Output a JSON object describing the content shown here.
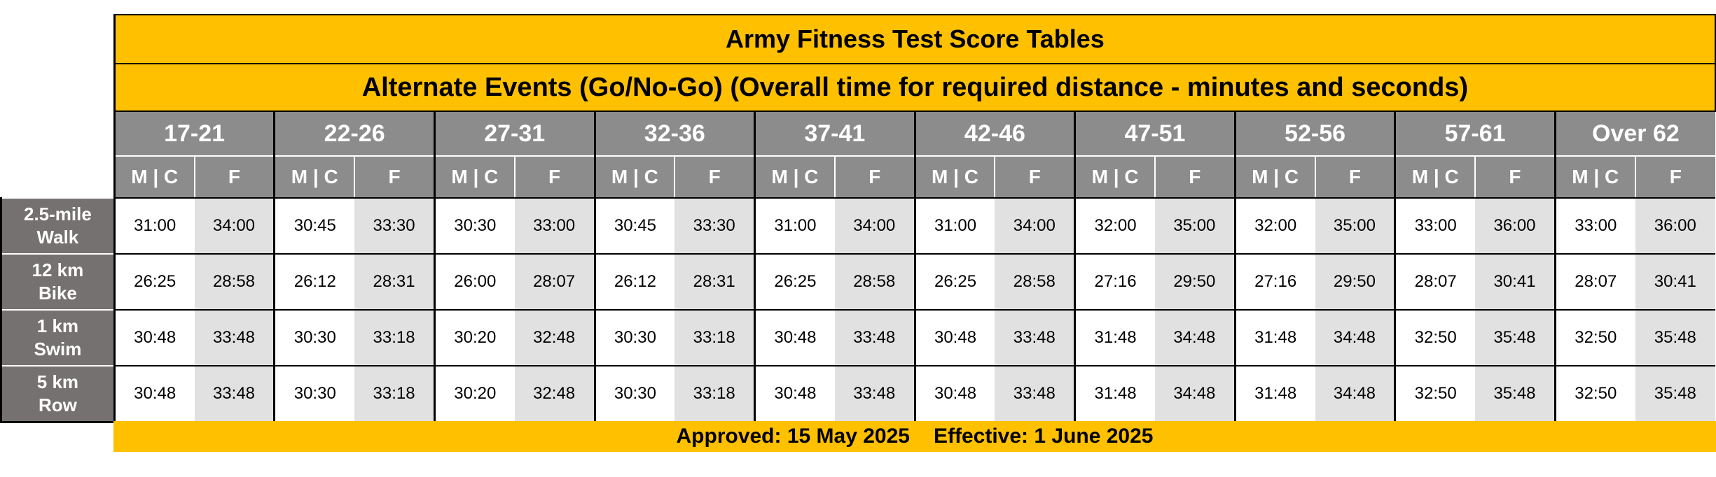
{
  "title": "Army Fitness Test Score Tables",
  "subtitle": "Alternate Events (Go/No-Go) (Overall time for required distance  -  minutes and seconds)",
  "sex_labels": {
    "m": "M | C",
    "f": "F"
  },
  "age_groups": [
    "17-21",
    "22-26",
    "27-31",
    "32-36",
    "37-41",
    "42-46",
    "47-51",
    "52-56",
    "57-61",
    "Over 62"
  ],
  "events": [
    {
      "name_lines": [
        "2.5-mile",
        "Walk"
      ],
      "values": [
        "31:00",
        "34:00",
        "30:45",
        "33:30",
        "30:30",
        "33:00",
        "30:45",
        "33:30",
        "31:00",
        "34:00",
        "31:00",
        "34:00",
        "32:00",
        "35:00",
        "32:00",
        "35:00",
        "33:00",
        "36:00",
        "33:00",
        "36:00"
      ]
    },
    {
      "name_lines": [
        "12 km",
        "Bike"
      ],
      "values": [
        "26:25",
        "28:58",
        "26:12",
        "28:31",
        "26:00",
        "28:07",
        "26:12",
        "28:31",
        "26:25",
        "28:58",
        "26:25",
        "28:58",
        "27:16",
        "29:50",
        "27:16",
        "29:50",
        "28:07",
        "30:41",
        "28:07",
        "30:41"
      ]
    },
    {
      "name_lines": [
        "1 km",
        "Swim"
      ],
      "values": [
        "30:48",
        "33:48",
        "30:30",
        "33:18",
        "30:20",
        "32:48",
        "30:30",
        "33:18",
        "30:48",
        "33:48",
        "30:48",
        "33:48",
        "31:48",
        "34:48",
        "31:48",
        "34:48",
        "32:50",
        "35:48",
        "32:50",
        "35:48"
      ]
    },
    {
      "name_lines": [
        "5 km",
        "Row"
      ],
      "values": [
        "30:48",
        "33:48",
        "30:30",
        "33:18",
        "30:20",
        "32:48",
        "30:30",
        "33:18",
        "30:48",
        "33:48",
        "30:48",
        "33:48",
        "31:48",
        "34:48",
        "31:48",
        "34:48",
        "32:50",
        "35:48",
        "32:50",
        "35:48"
      ]
    }
  ],
  "footer": {
    "approved": "Approved: 15 May 2025",
    "effective": "Effective: 1 June 2025"
  }
}
